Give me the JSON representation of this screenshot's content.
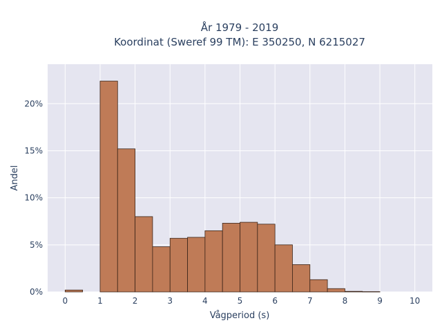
{
  "chart_data": {
    "type": "bar",
    "title_line1": "År 1979 - 2019",
    "title_line2": "Koordinat (Sweref 99 TM): E 350250, N 6215027",
    "xlabel": "Vågperiod (s)",
    "ylabel": "Andel",
    "xlim": [
      -0.5,
      10.5
    ],
    "ylim": [
      0,
      24.2
    ],
    "x_ticks": [
      0,
      1,
      2,
      3,
      4,
      5,
      6,
      7,
      8,
      9,
      10
    ],
    "y_ticks": [
      0,
      5,
      10,
      15,
      20
    ],
    "y_tick_labels": [
      "0%",
      "5%",
      "10%",
      "15%",
      "20%"
    ],
    "bin_width": 0.5,
    "bins": [
      {
        "x0": 0.0,
        "value": 0.2
      },
      {
        "x0": 0.5,
        "value": 0.0
      },
      {
        "x0": 1.0,
        "value": 22.4
      },
      {
        "x0": 1.5,
        "value": 15.2
      },
      {
        "x0": 2.0,
        "value": 8.0
      },
      {
        "x0": 2.5,
        "value": 4.8
      },
      {
        "x0": 3.0,
        "value": 5.7
      },
      {
        "x0": 3.5,
        "value": 5.8
      },
      {
        "x0": 4.0,
        "value": 6.5
      },
      {
        "x0": 4.5,
        "value": 7.3
      },
      {
        "x0": 5.0,
        "value": 7.4
      },
      {
        "x0": 5.5,
        "value": 7.2
      },
      {
        "x0": 6.0,
        "value": 5.0
      },
      {
        "x0": 6.5,
        "value": 2.9
      },
      {
        "x0": 7.0,
        "value": 1.3
      },
      {
        "x0": 7.5,
        "value": 0.35
      },
      {
        "x0": 8.0,
        "value": 0.06
      },
      {
        "x0": 8.5,
        "value": 0.03
      },
      {
        "x0": 9.0,
        "value": 0.0
      },
      {
        "x0": 9.5,
        "value": 0.0
      }
    ],
    "grid": true,
    "colors": {
      "bar_fill": "#bf7b57",
      "bar_stroke": "#3a2418",
      "plot_bg": "#e5e5f0",
      "grid": "#ffffff"
    }
  }
}
